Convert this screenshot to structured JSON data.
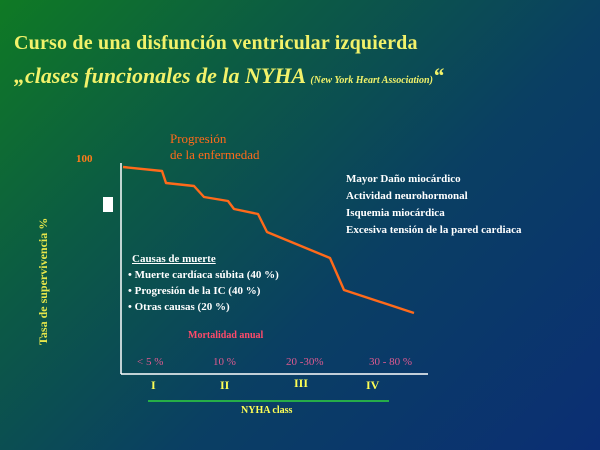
{
  "slide": {
    "title_line1": "Curso de una disfunción ventricular izquierda",
    "title_line2_main": "„clases funcionales de la NYHA",
    "title_line2_small": "(New York Heart Association)",
    "title_line2_end": "“"
  },
  "chart": {
    "y_axis_label": "Tasa de supervivencia %",
    "y_tick_top": "100",
    "progression_label_line1": "Progresión",
    "progression_label_line2": "de la enfermedad",
    "notes_right": [
      "Mayor Daño miocárdico",
      "Actividad neurohormonal",
      "Isquemia miocárdica",
      "Excesiva tensión de la pared cardiaca"
    ],
    "causes": {
      "heading": "Causas de muerte",
      "items": [
        "• Muerte cardíaca súbita (40 %)",
        "• Progresión de la IC (40 %)",
        "• Otras causas (20 %)"
      ]
    },
    "mortality_label": "Mortalidad anual",
    "mortality_values": [
      "< 5 %",
      "10 %",
      "20 -30%",
      "30 - 80 %"
    ],
    "classes": [
      "I",
      "II",
      "III",
      "IV"
    ],
    "x_axis_label": "NYHA class"
  },
  "colors": {
    "curve": "#ff6a1a",
    "axis": "#ffffff",
    "baseline_green": "#2fd23f"
  }
}
